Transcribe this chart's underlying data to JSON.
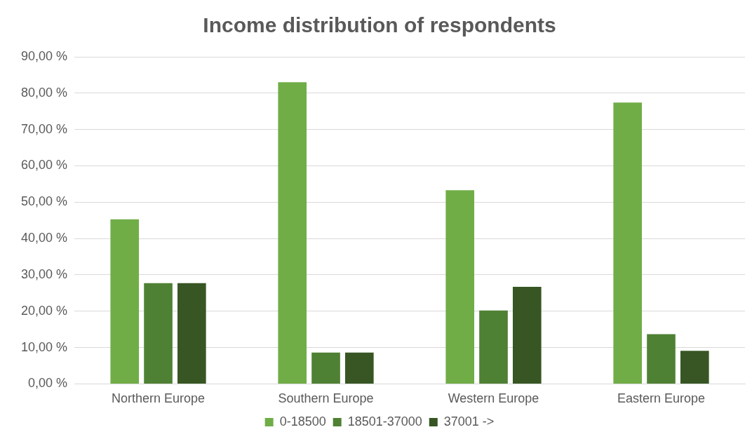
{
  "chart_data": {
    "type": "bar",
    "title": "Income distribution of respondents",
    "categories": [
      "Northern Europe",
      "Southern Europe",
      "Western Europe",
      "Eastern Europe"
    ],
    "series": [
      {
        "name": "0-18500",
        "color": "#70ad47",
        "values": [
          45.3,
          83.0,
          53.3,
          77.4
        ]
      },
      {
        "name": "18501-37000",
        "color": "#4f8134",
        "values": [
          27.7,
          8.6,
          20.2,
          13.7
        ]
      },
      {
        "name": "37001 ->",
        "color": "#375623",
        "values": [
          27.7,
          8.6,
          26.7,
          9.1
        ]
      }
    ],
    "ylim": [
      0,
      90
    ],
    "yticks": [
      {
        "value": 0,
        "label": "0,00 %"
      },
      {
        "value": 10,
        "label": "10,00 %"
      },
      {
        "value": 20,
        "label": "20,00 %"
      },
      {
        "value": 30,
        "label": "30,00 %"
      },
      {
        "value": 40,
        "label": "40,00 %"
      },
      {
        "value": 50,
        "label": "50,00 %"
      },
      {
        "value": 60,
        "label": "60,00 %"
      },
      {
        "value": 70,
        "label": "70,00 %"
      },
      {
        "value": 80,
        "label": "80,00 %"
      },
      {
        "value": 90,
        "label": "90,00 %"
      }
    ],
    "grid": "y",
    "legend": "bottom"
  }
}
